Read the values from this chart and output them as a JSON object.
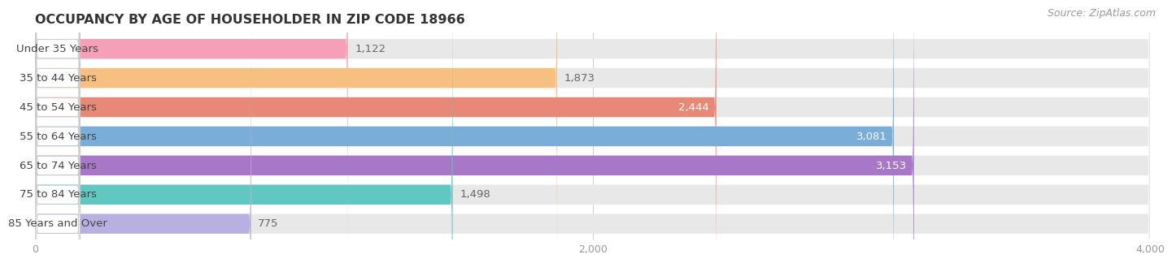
{
  "title": "OCCUPANCY BY AGE OF HOUSEHOLDER IN ZIP CODE 18966",
  "source": "Source: ZipAtlas.com",
  "categories": [
    "Under 35 Years",
    "35 to 44 Years",
    "45 to 54 Years",
    "55 to 64 Years",
    "65 to 74 Years",
    "75 to 84 Years",
    "85 Years and Over"
  ],
  "values": [
    1122,
    1873,
    2444,
    3081,
    3153,
    1498,
    775
  ],
  "bar_colors": [
    "#f5a0b8",
    "#f8c080",
    "#e88878",
    "#7aaed8",
    "#a878c8",
    "#60c8c0",
    "#b8b0e0"
  ],
  "xlim": [
    0,
    4000
  ],
  "xticks": [
    0,
    2000,
    4000
  ],
  "background_color": "#ffffff",
  "bar_bg_color": "#e8e8e8",
  "title_fontsize": 11.5,
  "label_fontsize": 9.5,
  "value_fontsize": 9.5,
  "source_fontsize": 9
}
